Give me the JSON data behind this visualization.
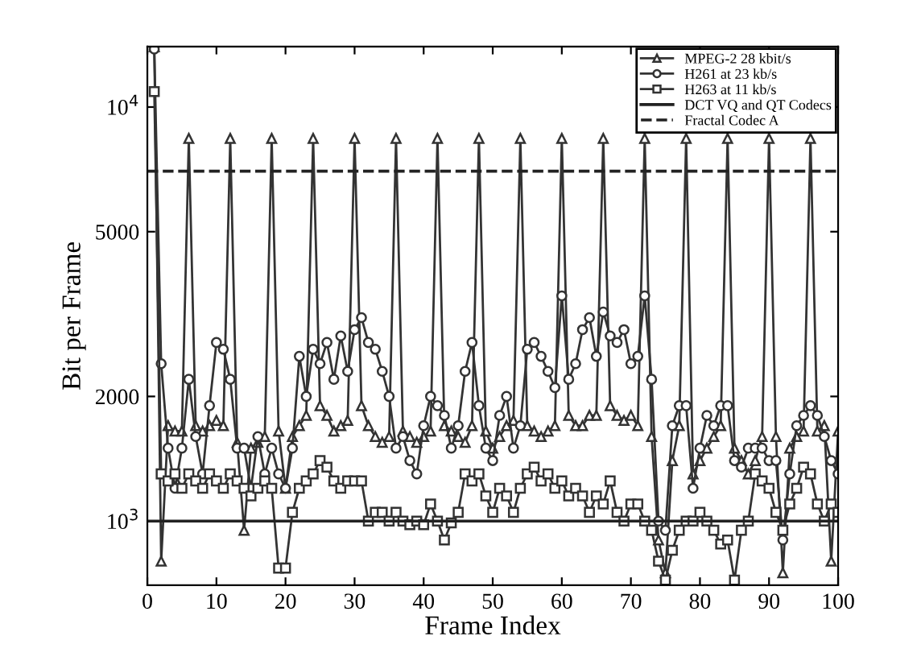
{
  "chart_data": {
    "type": "line",
    "xlabel": "Frame Index",
    "ylabel": "Bit per Frame",
    "log": "y",
    "xlim": [
      0,
      100
    ],
    "xticks": [
      0,
      10,
      20,
      30,
      40,
      50,
      60,
      70,
      80,
      90,
      100
    ],
    "ylim": [
      700,
      14000
    ],
    "yticks": [
      {
        "value": 1000,
        "label": "10$^{3}$"
      },
      2000,
      5000,
      {
        "value": 10000,
        "label": "10$^{4}$"
      }
    ],
    "grid": false,
    "legend": "top right",
    "x": [
      1,
      2,
      3,
      4,
      5,
      6,
      7,
      8,
      9,
      10,
      11,
      12,
      13,
      14,
      15,
      16,
      17,
      18,
      19,
      20,
      21,
      22,
      23,
      24,
      25,
      26,
      27,
      28,
      29,
      30,
      31,
      32,
      33,
      34,
      35,
      36,
      37,
      38,
      39,
      40,
      41,
      42,
      43,
      44,
      45,
      46,
      47,
      48,
      49,
      50,
      51,
      52,
      53,
      54,
      55,
      56,
      57,
      58,
      59,
      60,
      61,
      62,
      63,
      64,
      65,
      66,
      67,
      68,
      69,
      70,
      71,
      72,
      73,
      74,
      75,
      76,
      77,
      78,
      79,
      80,
      81,
      82,
      83,
      84,
      85,
      86,
      87,
      88,
      89,
      90,
      91,
      92,
      93,
      94,
      95,
      96,
      97,
      98,
      99,
      100
    ],
    "series": [
      {
        "name": "MPEG-2 28 kbit/s",
        "color": "#333333",
        "marker": "triangle",
        "values": [
          14000,
          800,
          1700,
          1650,
          1650,
          8400,
          1700,
          1650,
          1700,
          1750,
          1700,
          8400,
          1550,
          950,
          1500,
          1550,
          1600,
          8400,
          1650,
          1200,
          1600,
          1700,
          1800,
          8400,
          1900,
          1800,
          1650,
          1700,
          1750,
          8400,
          1900,
          1700,
          1600,
          1550,
          1600,
          8400,
          1650,
          1600,
          1550,
          1600,
          1650,
          8400,
          1700,
          1650,
          1600,
          1550,
          1700,
          8400,
          1650,
          1500,
          1600,
          1700,
          1750,
          8400,
          1700,
          1650,
          1600,
          1650,
          1700,
          8400,
          1800,
          1700,
          1700,
          1800,
          1800,
          8400,
          1900,
          1800,
          1750,
          1800,
          1700,
          8400,
          1600,
          900,
          750,
          1400,
          1700,
          8400,
          1300,
          1400,
          1500,
          1600,
          1700,
          8400,
          1500,
          1400,
          1300,
          1400,
          1600,
          8400,
          1600,
          750,
          1500,
          1600,
          1650,
          8400,
          1650,
          1700,
          800,
          1650
        ]
      },
      {
        "name": "H261 at 23 kb/s",
        "color": "#333333",
        "marker": "circle",
        "values": [
          13800,
          2400,
          1500,
          1200,
          1500,
          2200,
          1600,
          1300,
          1900,
          2700,
          2600,
          2200,
          1500,
          1500,
          1200,
          1600,
          1300,
          1500,
          1300,
          1200,
          1500,
          2500,
          2000,
          2600,
          2400,
          2700,
          2200,
          2800,
          2300,
          2900,
          3100,
          2700,
          2600,
          2300,
          2000,
          1500,
          1600,
          1400,
          1300,
          1700,
          2000,
          1900,
          1800,
          1500,
          1700,
          2300,
          2700,
          1900,
          1500,
          1400,
          1800,
          2000,
          1500,
          1700,
          2600,
          2700,
          2500,
          2300,
          2100,
          3500,
          2200,
          2400,
          2900,
          3100,
          2500,
          3200,
          2800,
          2700,
          2900,
          2400,
          2500,
          3500,
          2200,
          1000,
          950,
          1700,
          1900,
          1900,
          1200,
          1500,
          1800,
          1700,
          1900,
          1900,
          1400,
          1350,
          1500,
          1500,
          1500,
          1400,
          1400,
          900,
          1300,
          1700,
          1800,
          1900,
          1800,
          1600,
          1400,
          1300
        ]
      },
      {
        "name": "H263 at 11 kb/s",
        "color": "#333333",
        "marker": "square",
        "values": [
          10900,
          1300,
          1250,
          1300,
          1200,
          1300,
          1250,
          1200,
          1300,
          1250,
          1200,
          1300,
          1250,
          1200,
          1150,
          1200,
          1250,
          1200,
          770,
          770,
          1050,
          1200,
          1250,
          1300,
          1400,
          1350,
          1250,
          1200,
          1250,
          1250,
          1250,
          1000,
          1050,
          1050,
          1000,
          1050,
          1000,
          980,
          1000,
          980,
          1100,
          1000,
          900,
          990,
          1050,
          1300,
          1250,
          1300,
          1150,
          1050,
          1200,
          1150,
          1050,
          1200,
          1300,
          1350,
          1250,
          1300,
          1200,
          1250,
          1150,
          1200,
          1150,
          1050,
          1150,
          1100,
          1250,
          1050,
          1000,
          1100,
          1100,
          1000,
          950,
          800,
          720,
          850,
          950,
          1000,
          1000,
          1050,
          1000,
          950,
          880,
          900,
          720,
          950,
          1000,
          1300,
          1250,
          1200,
          1050,
          950,
          1100,
          1200,
          1350,
          1300,
          1100,
          1000,
          1100,
          1050
        ]
      }
    ],
    "ref_lines": [
      {
        "axis": "y",
        "value": 1000,
        "label": "DCT VQ and QT Codecs",
        "color": "#222222",
        "line_style": "solid"
      },
      {
        "axis": "y",
        "value": 7000,
        "label": "Fractal Codec A",
        "color": "#222222",
        "line_style": "dashed"
      }
    ]
  }
}
